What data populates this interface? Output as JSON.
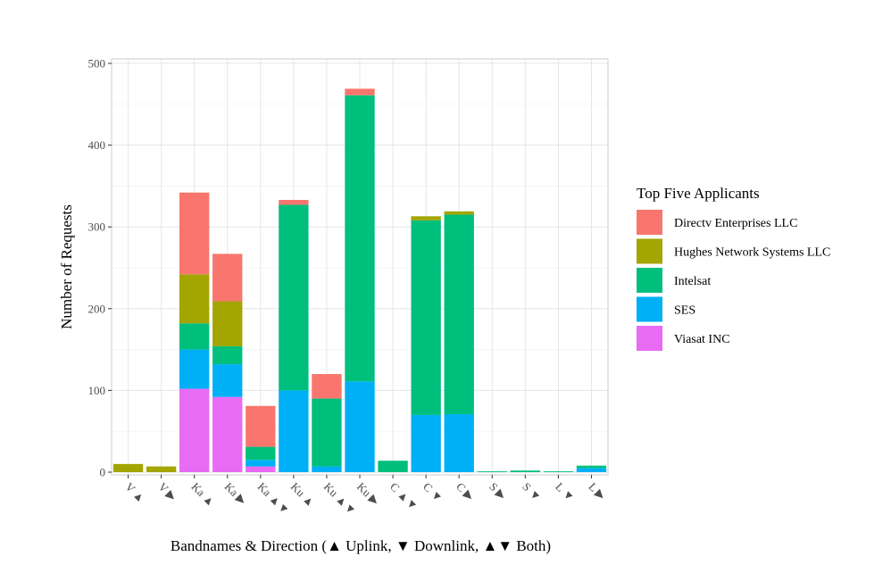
{
  "chart_data": {
    "type": "bar",
    "stacked": true,
    "xlabel": "Bandnames & Direction (▲ Uplink, ▼ Downlink, ▲▼ Both)",
    "ylabel": "Number of Requests",
    "ylim": [
      0,
      500
    ],
    "yticks": [
      0,
      100,
      200,
      300,
      400,
      500
    ],
    "grid": true,
    "legend_position": "right",
    "categories": [
      "V ▲",
      "V ▶",
      "Ka ▲",
      "Ka ▶",
      "Ka ▲▼",
      "Ku ▲",
      "Ku ▲▼",
      "Ku ▶",
      "C ▲▼",
      "C ▼",
      "C ▶",
      "S ▶",
      "S ▼",
      "L ▼",
      "L ▶"
    ],
    "legend": {
      "title": "Top Five Applicants"
    },
    "series": [
      {
        "name": "Viasat INC",
        "color": "#E76BF3",
        "values": [
          0,
          0,
          102,
          92,
          7,
          0,
          0,
          0,
          0,
          0,
          0,
          0,
          0,
          0,
          0
        ]
      },
      {
        "name": "SES",
        "color": "#00B0F6",
        "values": [
          0,
          0,
          48,
          40,
          8,
          100,
          7,
          111,
          0,
          70,
          71,
          0,
          0,
          0,
          5
        ]
      },
      {
        "name": "Intelsat",
        "color": "#00BF7D",
        "values": [
          0,
          0,
          32,
          22,
          16,
          227,
          83,
          350,
          14,
          238,
          244,
          1,
          2,
          1,
          3
        ]
      },
      {
        "name": "Hughes Network Systems LLC",
        "color": "#A3A500",
        "values": [
          10,
          7,
          60,
          55,
          0,
          0,
          0,
          0,
          0,
          5,
          4,
          0,
          0,
          0,
          0
        ]
      },
      {
        "name": "Directv Enterprises LLC",
        "color": "#F8766D",
        "values": [
          0,
          0,
          100,
          58,
          50,
          6,
          30,
          8,
          0,
          0,
          0,
          0,
          0,
          0,
          0
        ]
      }
    ],
    "legend_order": [
      "Directv Enterprises LLC",
      "Hughes Network Systems LLC",
      "Intelsat",
      "SES",
      "Viasat INC"
    ]
  }
}
